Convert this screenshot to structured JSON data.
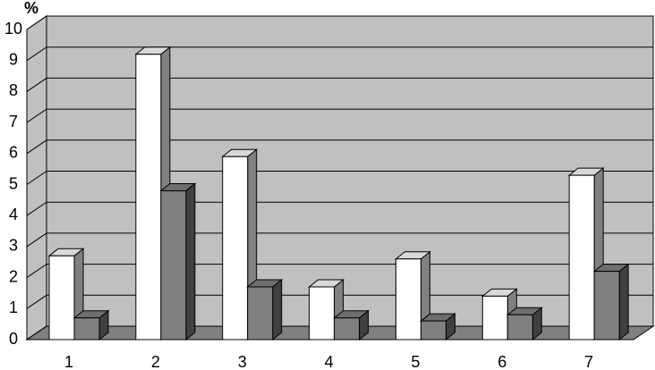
{
  "chart_data": {
    "type": "bar3d",
    "y_label": "%",
    "categories": [
      "1",
      "2",
      "3",
      "4",
      "5",
      "6",
      "7"
    ],
    "series": [
      {
        "color": "#ffffff",
        "values": [
          2.7,
          9.2,
          5.9,
          1.7,
          2.6,
          1.4,
          5.3
        ]
      },
      {
        "color": "#808080",
        "values": [
          0.7,
          4.8,
          1.7,
          0.7,
          0.6,
          0.8,
          2.2
        ]
      }
    ],
    "ylim": [
      0,
      10
    ],
    "yticks": [
      0,
      1,
      2,
      3,
      4,
      5,
      6,
      7,
      8,
      9,
      10
    ],
    "grid": true
  }
}
